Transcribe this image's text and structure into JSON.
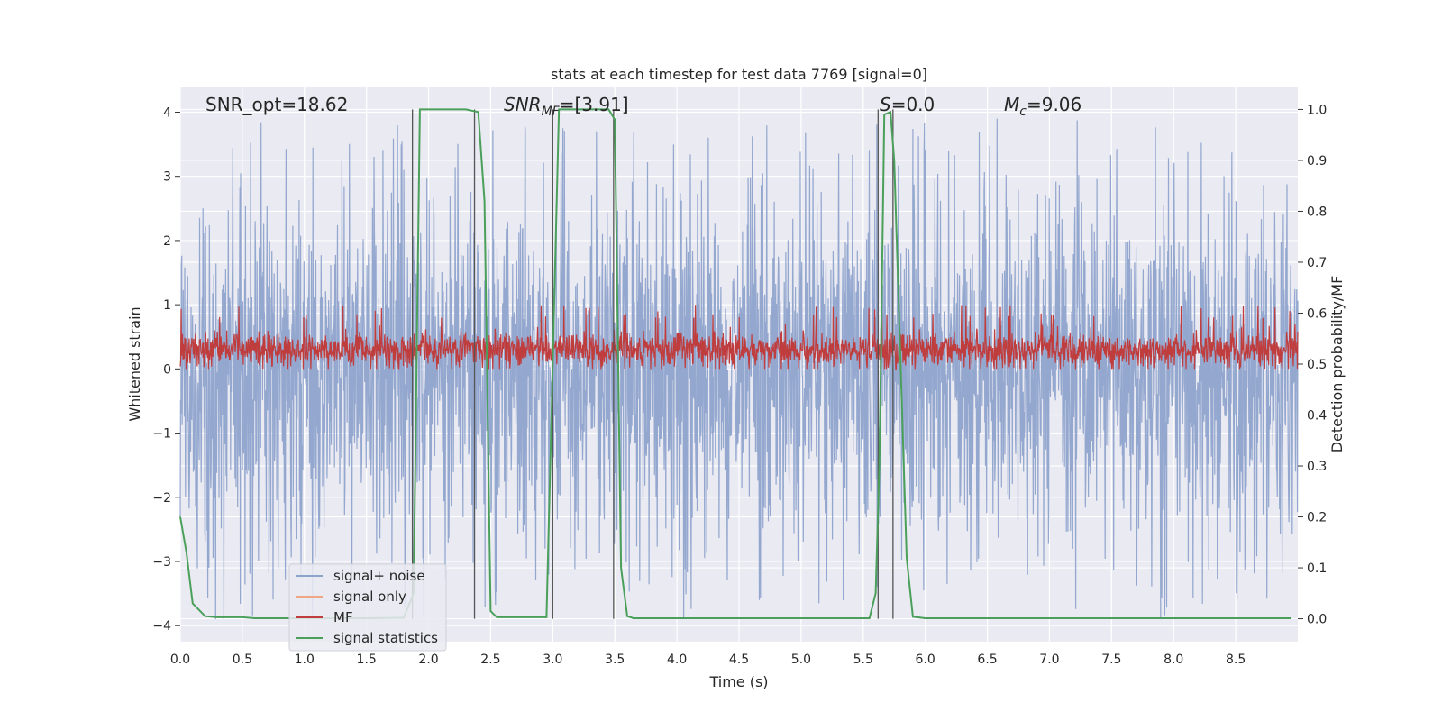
{
  "chart_data": {
    "type": "line",
    "title": "stats at each timestep for test data 7769 [signal=0]",
    "xlabel": "Time (s)",
    "ylabel": "Whitened strain",
    "y2label": "Detection probability/MF",
    "xlim": [
      0.0,
      9.0
    ],
    "ylim": [
      -4.25,
      4.4
    ],
    "y2lim": [
      -0.045,
      1.045
    ],
    "xticks": [
      0.0,
      0.5,
      1.0,
      1.5,
      2.0,
      2.5,
      3.0,
      3.5,
      4.0,
      4.5,
      5.0,
      5.5,
      6.0,
      6.5,
      7.0,
      7.5,
      8.0,
      8.5
    ],
    "xtick_labels": [
      "0.0",
      "0.5",
      "1.0",
      "1.5",
      "2.0",
      "2.5",
      "3.0",
      "3.5",
      "4.0",
      "4.5",
      "5.0",
      "5.5",
      "6.0",
      "6.5",
      "7.0",
      "7.5",
      "8.0",
      "8.5"
    ],
    "yticks": [
      4,
      3,
      2,
      1,
      0,
      -1,
      -2,
      -3,
      -4
    ],
    "ytick_labels": [
      "4",
      "3",
      "2",
      "1",
      "0",
      "−1",
      "−2",
      "−3",
      "−4"
    ],
    "y2ticks": [
      1.0,
      0.9,
      0.8,
      0.7,
      0.6,
      0.5,
      0.4,
      0.3,
      0.2,
      0.1,
      0.0
    ],
    "y2tick_labels": [
      "1.0",
      "0.9",
      "0.8",
      "0.7",
      "0.6",
      "0.5",
      "0.4",
      "0.3",
      "0.2",
      "0.1",
      "0.0"
    ],
    "grid": true,
    "legend_position": "lower-left",
    "legend": [
      {
        "label": "signal+ noise",
        "color": "#8ea3cc"
      },
      {
        "label": "signal only",
        "color": "#f0a584"
      },
      {
        "label": "MF",
        "color": "#c03d3e"
      },
      {
        "label": "signal statistics",
        "color": "#4aa05a"
      }
    ],
    "annotations": {
      "snr_opt": "SNR_opt=18.62",
      "snr_mf_sym": "SNR",
      "snr_mf_sub": "MF",
      "snr_mf_val": "=[3.91]",
      "s_sym": "S",
      "s_val": "=0.0",
      "mc_sym": "M",
      "mc_sub": "c",
      "mc_val": "=9.06"
    },
    "series": [
      {
        "name": "signal+ noise",
        "axis": "left",
        "style": "noise",
        "amplitude_range": [
          -3.9,
          3.9
        ],
        "color": "#8ea3cc"
      },
      {
        "name": "MF",
        "axis": "left",
        "style": "noise",
        "amplitude_range": [
          0.0,
          1.0
        ],
        "color": "#c03d3e"
      },
      {
        "name": "signal statistics",
        "axis": "right",
        "color": "#4aa05a",
        "points": [
          [
            0.0,
            0.2
          ],
          [
            0.05,
            0.13
          ],
          [
            0.1,
            0.03
          ],
          [
            0.2,
            0.005
          ],
          [
            0.3,
            0.003
          ],
          [
            0.5,
            0.003
          ],
          [
            0.6,
            0.001
          ],
          [
            1.0,
            0.001
          ],
          [
            1.5,
            0.001
          ],
          [
            1.8,
            0.002
          ],
          [
            1.88,
            0.05
          ],
          [
            1.93,
            1.0
          ],
          [
            2.0,
            1.0
          ],
          [
            2.3,
            1.0
          ],
          [
            2.4,
            0.995
          ],
          [
            2.45,
            0.82
          ],
          [
            2.5,
            0.015
          ],
          [
            2.55,
            0.003
          ],
          [
            2.95,
            0.003
          ],
          [
            3.0,
            0.5
          ],
          [
            3.05,
            1.0
          ],
          [
            3.2,
            1.0
          ],
          [
            3.45,
            1.0
          ],
          [
            3.5,
            0.98
          ],
          [
            3.55,
            0.1
          ],
          [
            3.6,
            0.005
          ],
          [
            3.65,
            0.001
          ],
          [
            5.55,
            0.001
          ],
          [
            5.6,
            0.05
          ],
          [
            5.63,
            0.3
          ],
          [
            5.67,
            0.99
          ],
          [
            5.72,
            0.995
          ],
          [
            5.75,
            0.9
          ],
          [
            5.85,
            0.12
          ],
          [
            5.9,
            0.004
          ],
          [
            6.0,
            0.001
          ],
          [
            8.95,
            0.001
          ]
        ]
      },
      {
        "name": "signal only",
        "axis": "left",
        "color": "#f0a584",
        "points": []
      }
    ],
    "vertical_markers": [
      1.87,
      2.37,
      3.0,
      3.49,
      5.62,
      5.74
    ]
  }
}
